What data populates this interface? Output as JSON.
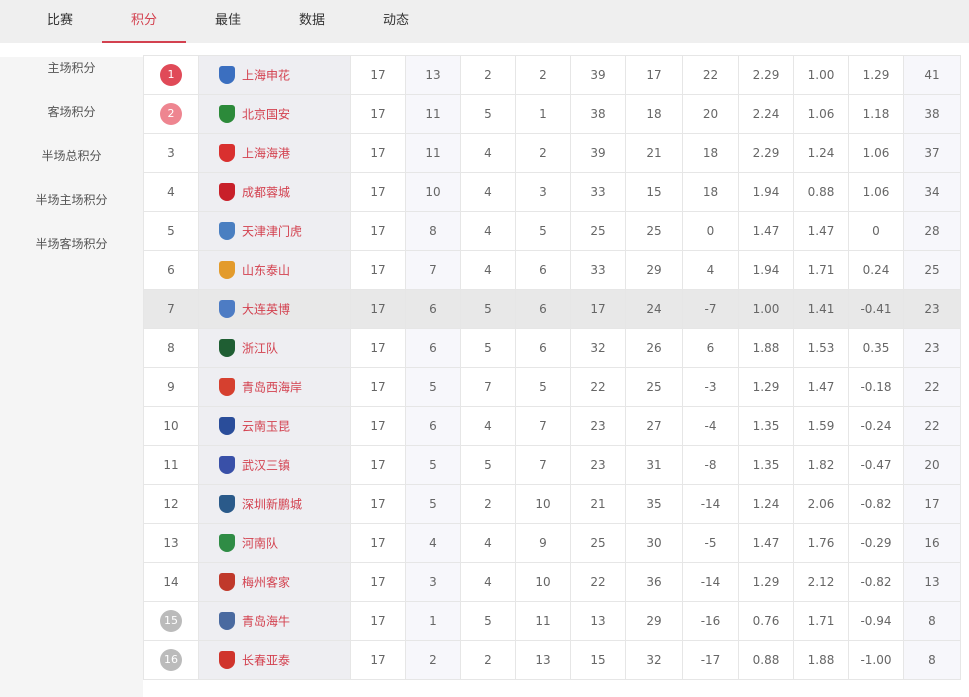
{
  "tabs": [
    "比赛",
    "积分",
    "最佳",
    "数据",
    "动态"
  ],
  "active_tab": 1,
  "sidebar": [
    "主场积分",
    "客场积分",
    "半场总积分",
    "半场主场积分",
    "半场客场积分"
  ],
  "colors": {
    "accent": "#d3414f",
    "rank1": "#e04a58",
    "rank2": "#ee8590",
    "relegation": "#bbbbbb",
    "highlight_row": "#e8e8e8"
  },
  "highlighted_rank": 7,
  "rows": [
    {
      "rank": "1",
      "team": "上海申花",
      "logo": "#3b6fc0",
      "v": [
        "17",
        "13",
        "2",
        "2",
        "39",
        "17",
        "22",
        "2.29",
        "1.00",
        "1.29",
        "41"
      ]
    },
    {
      "rank": "2",
      "team": "北京国安",
      "logo": "#2c8a3a",
      "v": [
        "17",
        "11",
        "5",
        "1",
        "38",
        "18",
        "20",
        "2.24",
        "1.06",
        "1.18",
        "38"
      ]
    },
    {
      "rank": "3",
      "team": "上海海港",
      "logo": "#d9302f",
      "v": [
        "17",
        "11",
        "4",
        "2",
        "39",
        "21",
        "18",
        "2.29",
        "1.24",
        "1.06",
        "37"
      ]
    },
    {
      "rank": "4",
      "team": "成都蓉城",
      "logo": "#c8202a",
      "v": [
        "17",
        "10",
        "4",
        "3",
        "33",
        "15",
        "18",
        "1.94",
        "0.88",
        "1.06",
        "34"
      ]
    },
    {
      "rank": "5",
      "team": "天津津门虎",
      "logo": "#4a7fc1",
      "v": [
        "17",
        "8",
        "4",
        "5",
        "25",
        "25",
        "0",
        "1.47",
        "1.47",
        "0",
        "28"
      ]
    },
    {
      "rank": "6",
      "team": "山东泰山",
      "logo": "#e39b2c",
      "v": [
        "17",
        "7",
        "4",
        "6",
        "33",
        "29",
        "4",
        "1.94",
        "1.71",
        "0.24",
        "25"
      ]
    },
    {
      "rank": "7",
      "team": "大连英博",
      "logo": "#4d7cc4",
      "v": [
        "17",
        "6",
        "5",
        "6",
        "17",
        "24",
        "-7",
        "1.00",
        "1.41",
        "-0.41",
        "23"
      ]
    },
    {
      "rank": "8",
      "team": "浙江队",
      "logo": "#1f5e33",
      "v": [
        "17",
        "6",
        "5",
        "6",
        "32",
        "26",
        "6",
        "1.88",
        "1.53",
        "0.35",
        "23"
      ]
    },
    {
      "rank": "9",
      "team": "青岛西海岸",
      "logo": "#d6402f",
      "v": [
        "17",
        "5",
        "7",
        "5",
        "22",
        "25",
        "-3",
        "1.29",
        "1.47",
        "-0.18",
        "22"
      ]
    },
    {
      "rank": "10",
      "team": "云南玉昆",
      "logo": "#2a4d9a",
      "v": [
        "17",
        "6",
        "4",
        "7",
        "23",
        "27",
        "-4",
        "1.35",
        "1.59",
        "-0.24",
        "22"
      ]
    },
    {
      "rank": "11",
      "team": "武汉三镇",
      "logo": "#3950a8",
      "v": [
        "17",
        "5",
        "5",
        "7",
        "23",
        "31",
        "-8",
        "1.35",
        "1.82",
        "-0.47",
        "20"
      ]
    },
    {
      "rank": "12",
      "team": "深圳新鹏城",
      "logo": "#2a5a8a",
      "v": [
        "17",
        "5",
        "2",
        "10",
        "21",
        "35",
        "-14",
        "1.24",
        "2.06",
        "-0.82",
        "17"
      ]
    },
    {
      "rank": "13",
      "team": "河南队",
      "logo": "#2f8c45",
      "v": [
        "17",
        "4",
        "4",
        "9",
        "25",
        "30",
        "-5",
        "1.47",
        "1.76",
        "-0.29",
        "16"
      ]
    },
    {
      "rank": "14",
      "team": "梅州客家",
      "logo": "#c0392b",
      "v": [
        "17",
        "3",
        "4",
        "10",
        "22",
        "36",
        "-14",
        "1.29",
        "2.12",
        "-0.82",
        "13"
      ]
    },
    {
      "rank": "15",
      "team": "青岛海牛",
      "logo": "#4a6aa0",
      "v": [
        "17",
        "1",
        "5",
        "11",
        "13",
        "29",
        "-16",
        "0.76",
        "1.71",
        "-0.94",
        "8"
      ]
    },
    {
      "rank": "16",
      "team": "长春亚泰",
      "logo": "#d0342c",
      "v": [
        "17",
        "2",
        "2",
        "13",
        "15",
        "32",
        "-17",
        "0.88",
        "1.88",
        "-1.00",
        "8"
      ]
    }
  ]
}
